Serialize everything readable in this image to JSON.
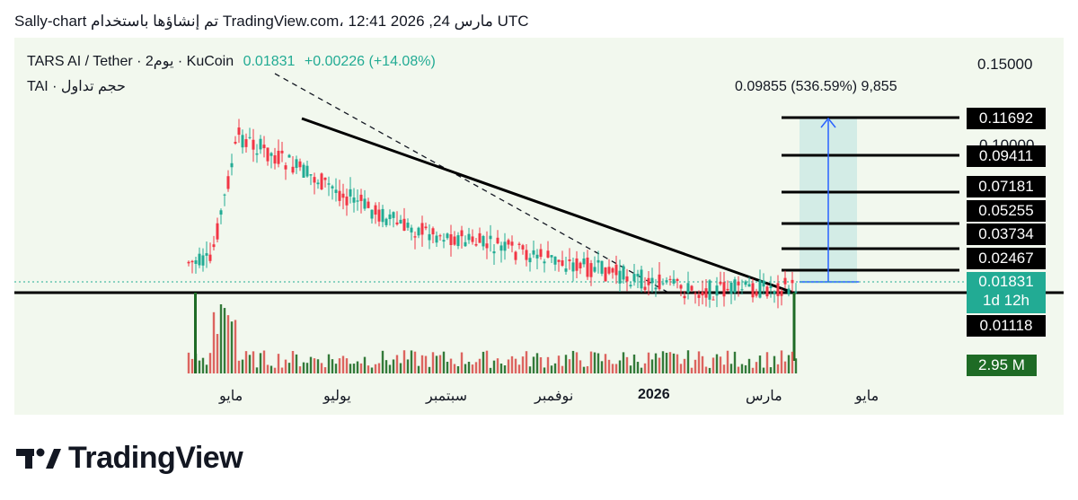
{
  "header": {
    "text": "Sally-chart تم إنشاؤها باستخدام TradingView.com، 12:41 2026 ,24 مارس UTC"
  },
  "legend": {
    "symbol": "TARS AI / Tether · 2يوم · KuCoin",
    "price": "0.01831",
    "change": "+0.00226 (+14.08%)",
    "volume_label": "TAI · حجم تداول"
  },
  "measure": {
    "text": "0.09855 (536.59%) 9,855"
  },
  "price_axis": {
    "top_label": "0.15000",
    "ghost_label": "0.10000",
    "levels": [
      "0.11692",
      "0.09411",
      "0.07181",
      "0.05255",
      "0.03734",
      "0.02467"
    ],
    "current_price": "0.01831",
    "countdown": "1d 12h",
    "support": "0.01118",
    "volume": "2.95 M"
  },
  "time_axis": {
    "labels": [
      "مايو",
      "يوليو",
      "سبتمبر",
      "نوفمبر",
      "2026",
      "مارس",
      "مايو"
    ]
  },
  "colors": {
    "up": "#22ab94",
    "down": "#f23645",
    "background": "#f2f8ee",
    "target_zone": "#d3ece6",
    "arrow": "#2962ff"
  },
  "brand": {
    "name": "TradingView"
  }
}
